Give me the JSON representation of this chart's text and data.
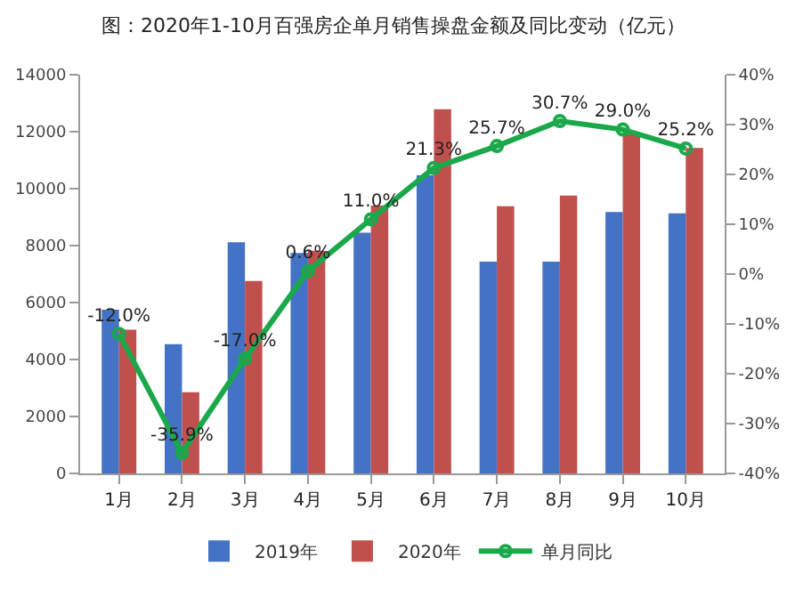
{
  "chart_data": {
    "type": "bar",
    "title": "图：2020年1-10月百强房企单月销售操盘金额及同比变动（亿元）",
    "categories": [
      "1月",
      "2月",
      "3月",
      "4月",
      "5月",
      "6月",
      "7月",
      "8月",
      "9月",
      "10月"
    ],
    "series": [
      {
        "name": "2019年",
        "color": "#4472c4",
        "values": [
          5750,
          4540,
          8120,
          7740,
          8450,
          10470,
          7440,
          7440,
          9180,
          9130
        ]
      },
      {
        "name": "2020年",
        "color": "#c0504d",
        "values": [
          5050,
          2850,
          6760,
          7820,
          9410,
          12790,
          9380,
          9760,
          11980,
          11430
        ]
      },
      {
        "name": "单月同比",
        "type": "line",
        "axis": "y2",
        "color": "#1aa84a",
        "marker": "circle",
        "line_style": "solid",
        "values": [
          -12.0,
          -35.9,
          -17.0,
          0.6,
          11.0,
          21.3,
          25.7,
          30.7,
          29.0,
          25.2
        ],
        "value_labels": [
          "-12.0%",
          "-35.9%",
          "-17.0%",
          "0.6%",
          "11.0%",
          "21.3%",
          "25.7%",
          "30.7%",
          "29.0%",
          "25.2%"
        ]
      }
    ],
    "ylim": [
      0,
      14000
    ],
    "yticks": [
      0,
      2000,
      4000,
      6000,
      8000,
      10000,
      12000,
      14000
    ],
    "y2lim": [
      -40,
      40
    ],
    "y2ticks": [
      {
        "value": -40,
        "label": "-40%"
      },
      {
        "value": -30,
        "label": "-30%"
      },
      {
        "value": -20,
        "label": "-20%"
      },
      {
        "value": -10,
        "label": "-10%"
      },
      {
        "value": 0,
        "label": "0%"
      },
      {
        "value": 10,
        "label": "10%"
      },
      {
        "value": 20,
        "label": "20%"
      },
      {
        "value": 30,
        "label": "30%"
      },
      {
        "value": 40,
        "label": "40%"
      }
    ],
    "grid": false,
    "legend": "bottom"
  }
}
